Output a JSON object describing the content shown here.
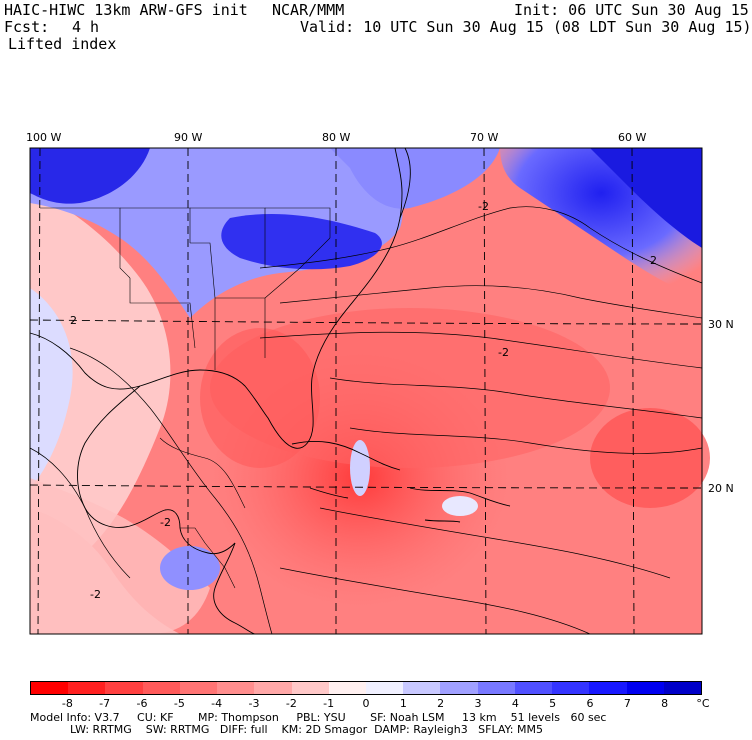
{
  "header": {
    "model": "HAIC-HIWC 13km ARW-GFS init",
    "org": "NCAR/MMM",
    "init": "Init: 06 UTC Sun 30 Aug 15",
    "fcst_label": "Fcst:",
    "fcst_value": "4 h",
    "valid": "Valid: 10 UTC Sun 30 Aug 15 (08 LDT Sun 30 Aug 15)",
    "field": "Lifted index"
  },
  "map": {
    "lon_labels": [
      "100 W",
      "90 W",
      "80 W",
      "70 W",
      "60 W"
    ],
    "lat_labels": [
      "30 N",
      "20 N"
    ],
    "contour_labels": [
      "-2",
      "2",
      "-2",
      "-2",
      "2",
      "-2"
    ]
  },
  "colorbar": {
    "ticks": [
      "-8",
      "-7",
      "-6",
      "-5",
      "-4",
      "-3",
      "-2",
      "-1",
      "0",
      "1",
      "2",
      "3",
      "4",
      "5",
      "6",
      "7",
      "8"
    ],
    "unit": "°C",
    "colors": [
      "#ff0000",
      "#ff2020",
      "#ff4040",
      "#ff5a5a",
      "#ff7474",
      "#ff8e8e",
      "#ffa8a8",
      "#ffc8c8",
      "#fff0f0",
      "#f0f0ff",
      "#c8c8ff",
      "#a0a0ff",
      "#7878ff",
      "#5050ff",
      "#3434ff",
      "#1818ff",
      "#0000f0",
      "#0000c8"
    ]
  },
  "model_info": {
    "line1": "Model Info: V3.7     CU: KF       MP: Thompson     PBL: YSU       SF: Noah LSM     13 km    51 levels   60 sec",
    "line2": "LW: RRTMG    SW: RRTMG   DIFF: full    KM: 2D Smagor  DAMP: Rayleigh3   SFLAY: MM5"
  }
}
